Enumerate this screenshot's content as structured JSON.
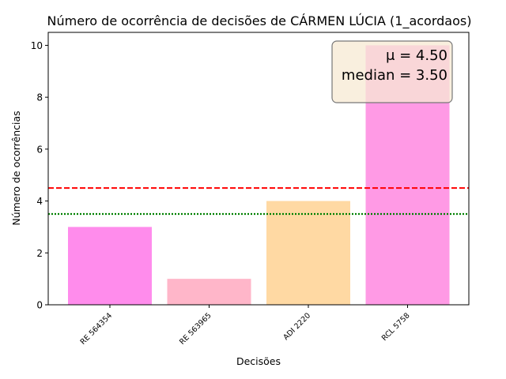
{
  "chart_data": {
    "type": "bar",
    "title": "Número de ocorrência de decisões de CÁRMEN LÚCIA (1_acordaos)",
    "xlabel": "Decisões",
    "ylabel": "Número de ocorrências",
    "categories": [
      "RE 564354",
      "RE 563965",
      "ADI 2220",
      "RCL 5758"
    ],
    "values": [
      3,
      1,
      4,
      10
    ],
    "bar_colors": [
      "#ff8cec",
      "#ffb6c9",
      "#ffd9a3",
      "#ff9ae5"
    ],
    "ylim": [
      0,
      10.5
    ],
    "yticks": [
      0,
      2,
      4,
      6,
      8,
      10
    ],
    "mean": 4.5,
    "median": 3.5,
    "mean_line_color": "#ff0000",
    "median_line_color": "#008000",
    "stats_box": {
      "mean_text": "μ = 4.50",
      "median_text": "median = 3.50",
      "background": "#f7ead3",
      "border": "#777777"
    },
    "grid": false,
    "legend": "none"
  }
}
